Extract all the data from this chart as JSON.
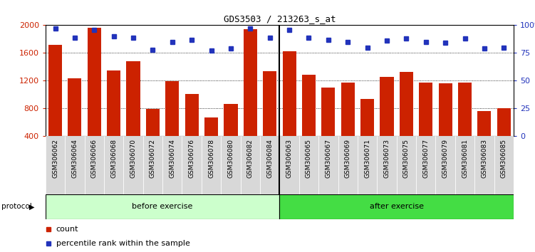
{
  "title": "GDS3503 / 213263_s_at",
  "samples": [
    "GSM306062",
    "GSM306064",
    "GSM306066",
    "GSM306068",
    "GSM306070",
    "GSM306072",
    "GSM306074",
    "GSM306076",
    "GSM306078",
    "GSM306080",
    "GSM306082",
    "GSM306084",
    "GSM306063",
    "GSM306065",
    "GSM306067",
    "GSM306069",
    "GSM306071",
    "GSM306073",
    "GSM306075",
    "GSM306077",
    "GSM306079",
    "GSM306081",
    "GSM306083",
    "GSM306085"
  ],
  "counts": [
    1720,
    1230,
    1960,
    1350,
    1480,
    790,
    1190,
    1010,
    670,
    860,
    1940,
    1340,
    1620,
    1290,
    1100,
    1170,
    940,
    1250,
    1330,
    1170,
    1160,
    1170,
    760,
    800
  ],
  "percentiles": [
    97,
    89,
    96,
    90,
    89,
    78,
    85,
    87,
    77,
    79,
    97,
    89,
    96,
    89,
    87,
    85,
    80,
    86,
    88,
    85,
    84,
    88,
    79,
    80
  ],
  "before_count": 12,
  "after_count": 12,
  "ylim_left": [
    400,
    2000
  ],
  "ylim_right": [
    0,
    100
  ],
  "yticks_left": [
    400,
    800,
    1200,
    1600,
    2000
  ],
  "yticks_right": [
    0,
    25,
    50,
    75,
    100
  ],
  "bar_color": "#cc2200",
  "dot_color": "#2233bb",
  "before_color_light": "#ccffcc",
  "after_color": "#44dd44",
  "tick_label_bg": "#d8d8d8",
  "legend_count_label": "count",
  "legend_pct_label": "percentile rank within the sample",
  "protocol_label": "protocol",
  "before_label": "before exercise",
  "after_label": "after exercise"
}
